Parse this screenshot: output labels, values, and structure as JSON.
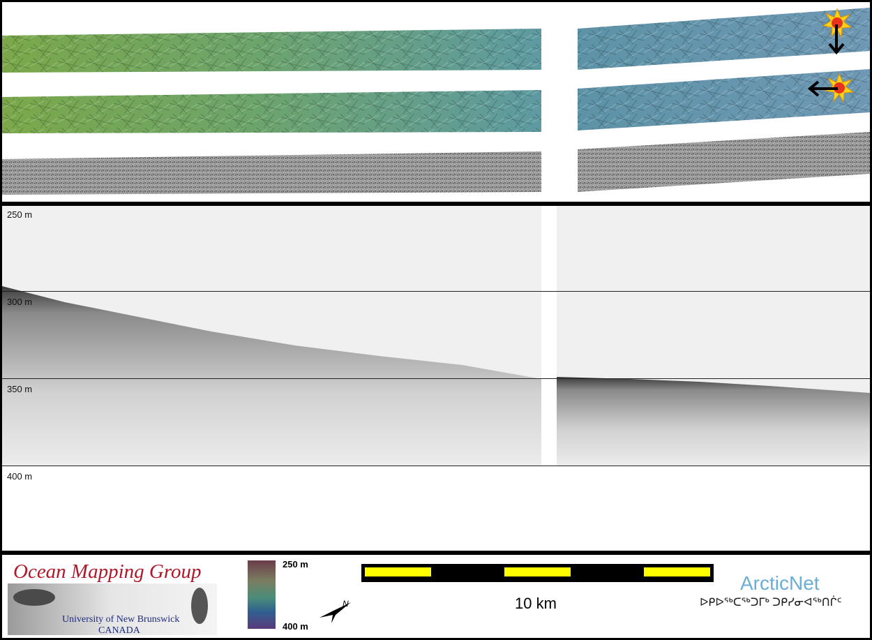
{
  "profile": {
    "depth_labels": [
      "250 m",
      "300 m",
      "350 m",
      "400 m"
    ]
  },
  "legend": {
    "color_scale_top": "250 m",
    "color_scale_bottom": "400 m",
    "scale_bar_label": "10 km"
  },
  "logos": {
    "ocean_mapping_group": "Ocean Mapping Group",
    "university": "University of New Brunswick",
    "country": "CANADA",
    "arcticnet": "ArcticNet",
    "arcticnet_inuktitut": "ᐅᑭᐅᖅᑕᖅᑐᒥᒃ ᑐᑭᓯᓂᐊᖅᑎᒌᑦ"
  },
  "icons": {
    "sun_marker": "sun-illumination-icon",
    "arrow_down": "arrow-down-icon",
    "arrow_left": "arrow-left-icon",
    "north_arrow": "north-arrow-icon"
  },
  "colors": {
    "profile_background": "#f0f0f0",
    "scale_bar_fill": "#ffff00",
    "omg_title": "#b0182a",
    "arcticnet": "#6aaed6"
  }
}
